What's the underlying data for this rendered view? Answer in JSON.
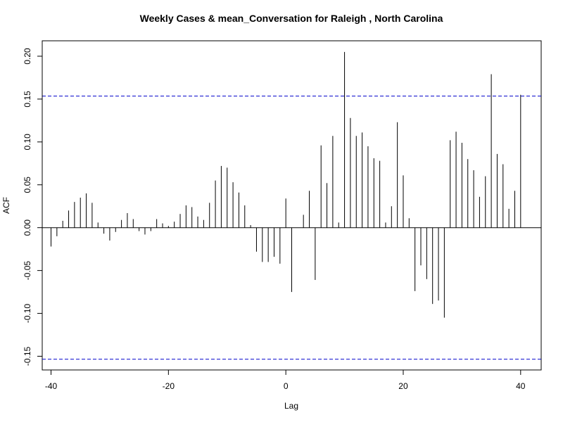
{
  "chart_data": {
    "type": "bar",
    "title": "Weekly Cases & mean_Conversation for Raleigh , North Carolina",
    "xlabel": "Lag",
    "ylabel": "ACF",
    "xlim": [
      -41.5,
      43.5
    ],
    "ylim": [
      -0.166,
      0.218
    ],
    "x_ticks": [
      -40,
      -20,
      0,
      20,
      40
    ],
    "y_ticks": [
      -0.15,
      -0.1,
      -0.05,
      0.0,
      0.05,
      0.1,
      0.15,
      0.2
    ],
    "y_tick_labels": [
      "-0.15",
      "-0.10",
      "-0.05",
      "0.00",
      "0.05",
      "0.10",
      "0.15",
      "0.20"
    ],
    "confidence_bounds": [
      0.1535,
      -0.1535
    ],
    "line_color": "#000000",
    "confidence_color": "#0000cc",
    "lags": [
      -40,
      -39,
      -38,
      -37,
      -36,
      -35,
      -34,
      -33,
      -32,
      -31,
      -30,
      -29,
      -28,
      -27,
      -26,
      -25,
      -24,
      -23,
      -22,
      -21,
      -20,
      -19,
      -18,
      -17,
      -16,
      -15,
      -14,
      -13,
      -12,
      -11,
      -10,
      -9,
      -8,
      -7,
      -6,
      -5,
      -4,
      -3,
      -2,
      -1,
      0,
      1,
      2,
      3,
      4,
      5,
      6,
      7,
      8,
      9,
      10,
      11,
      12,
      13,
      14,
      15,
      16,
      17,
      18,
      19,
      20,
      21,
      22,
      23,
      24,
      25,
      26,
      27,
      28,
      29,
      30,
      31,
      32,
      33,
      34,
      35,
      36,
      37,
      38,
      39,
      40
    ],
    "acf": [
      -0.022,
      -0.01,
      0.008,
      0.02,
      0.03,
      0.035,
      0.04,
      0.029,
      0.006,
      -0.007,
      -0.015,
      -0.005,
      0.009,
      0.017,
      0.01,
      -0.004,
      -0.008,
      -0.004,
      0.01,
      0.005,
      0.002,
      0.007,
      0.016,
      0.026,
      0.024,
      0.013,
      0.009,
      0.029,
      0.055,
      0.072,
      0.07,
      0.053,
      0.041,
      0.026,
      0.003,
      -0.028,
      -0.04,
      -0.04,
      -0.034,
      -0.042,
      0.034,
      -0.075,
      0.0,
      0.015,
      0.043,
      -0.061,
      0.096,
      0.052,
      0.107,
      0.006,
      0.205,
      0.128,
      0.107,
      0.111,
      0.095,
      0.081,
      0.078,
      0.006,
      0.025,
      0.123,
      0.061,
      0.011,
      -0.074,
      -0.044,
      -0.06,
      -0.089,
      -0.085,
      -0.105,
      0.102,
      0.112,
      0.099,
      0.08,
      0.067,
      0.036,
      0.06,
      0.179,
      0.086,
      0.074,
      0.022,
      0.043,
      0.155
    ]
  }
}
